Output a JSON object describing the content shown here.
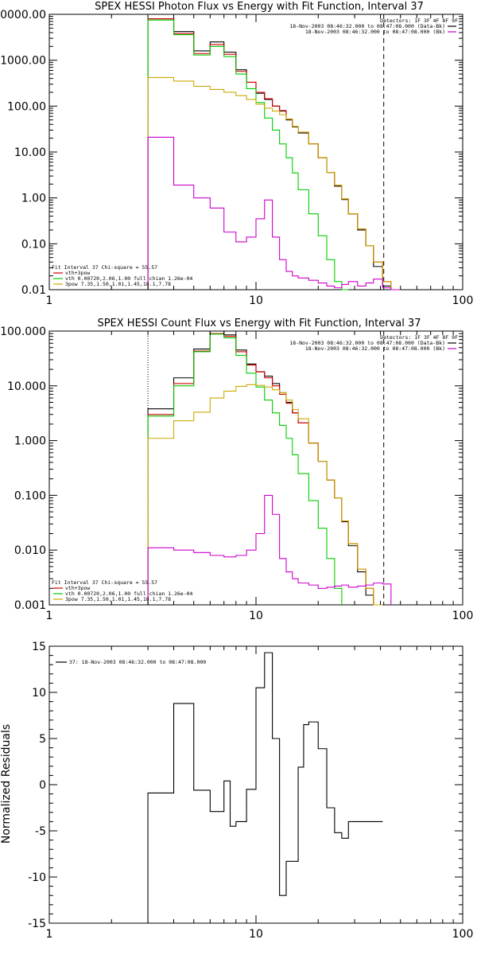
{
  "chart_data": [
    {
      "type": "line",
      "title": "SPEX HESSI Photon Flux vs Energy with Fit Function, Interval 37",
      "xscale": "log",
      "yscale": "log",
      "xlim": [
        1,
        100
      ],
      "ylim": [
        0.01,
        10000
      ],
      "xticks": [
        1,
        10,
        100
      ],
      "xtick_labels": [
        "1",
        "10",
        "100"
      ],
      "yticks": [
        0.01,
        0.1,
        1,
        10,
        100,
        1000,
        10000
      ],
      "ytick_labels": [
        "0.01",
        "0.10",
        "1.00",
        "10.00",
        "100.00",
        "1000.00",
        "10000.00"
      ],
      "vlines": [
        {
          "x": 3,
          "style": "dotted",
          "color": "#000000"
        },
        {
          "x": 41.5,
          "style": "dashed",
          "color": "#000000"
        }
      ],
      "legend_top": [
        "Detectors: 1F 3F 4F 8F 9F",
        "18-Nov-2003 08:46:32.000 to 08:47:08.000 (Data-Bk)",
        "18-Nov-2003 08:46:32.000 to 08:47:08.000 (Bk)"
      ],
      "legend_bottom": [
        "Fit Interval 37    Chi-square = 55.57",
        "vth+3pow",
        "vth 0.00720,2.06,1.00   full chian 1.26e-04",
        "3pow 7.35,1.50,1.01,1.45,18.1,7.78"
      ],
      "edges": [
        3.0,
        4.0,
        5.0,
        6.0,
        7.0,
        8.0,
        9.0,
        10.0,
        11.0,
        12.0,
        13.0,
        14.0,
        15.0,
        16.0,
        18.0,
        20.0,
        22.0,
        24.0,
        26.0,
        28.0,
        31.0,
        34.0,
        37.0,
        41.0,
        45.0,
        50.0
      ],
      "series": [
        {
          "name": "Data-Bk",
          "color": "#000000",
          "values": [
            8000,
            4200,
            1600,
            2500,
            1500,
            620,
            330,
            190,
            140,
            100,
            78,
            50,
            35,
            26,
            15,
            7.5,
            3.6,
            1.8,
            0.92,
            0.45,
            0.2,
            0.09,
            0.032,
            0.012,
            null
          ]
        },
        {
          "name": "vth+3pow",
          "color": "#d40000",
          "values": [
            8000,
            3800,
            1400,
            2200,
            1350,
            570,
            330,
            200,
            145,
            100,
            80,
            52,
            36,
            27,
            15,
            7.5,
            3.6,
            1.9,
            0.95,
            0.45,
            0.21,
            0.09,
            0.04,
            0.015,
            0.007
          ]
        },
        {
          "name": "vth",
          "color": "#00cc00",
          "values": [
            7500,
            3600,
            1300,
            2000,
            1200,
            500,
            240,
            120,
            55,
            30,
            15,
            7.5,
            3.5,
            1.5,
            0.45,
            0.15,
            0.045,
            0.015,
            0.005,
            null,
            null,
            null,
            null,
            null,
            null
          ]
        },
        {
          "name": "3pow",
          "color": "#ccaa00",
          "values": [
            420,
            350,
            270,
            230,
            200,
            170,
            140,
            110,
            90,
            78,
            65,
            52,
            36,
            27,
            15,
            7.5,
            3.6,
            1.9,
            0.95,
            0.45,
            0.21,
            0.09,
            0.04,
            0.015,
            0.007
          ]
        },
        {
          "name": "Bk",
          "color": "#cc00cc",
          "values": [
            21,
            1.9,
            1.0,
            0.6,
            0.18,
            0.11,
            0.14,
            0.35,
            0.9,
            0.14,
            0.045,
            0.025,
            0.02,
            0.018,
            0.016,
            0.014,
            0.012,
            0.011,
            0.013,
            0.015,
            0.012,
            0.014,
            0.017,
            0.011,
            0.008
          ]
        }
      ]
    },
    {
      "type": "line",
      "title": "SPEX HESSI Count Flux vs Energy with Fit Function, Interval 37",
      "xscale": "log",
      "yscale": "log",
      "xlim": [
        1,
        100
      ],
      "ylim": [
        0.001,
        100
      ],
      "xticks": [
        1,
        10,
        100
      ],
      "xtick_labels": [
        "1",
        "10",
        "100"
      ],
      "yticks": [
        0.001,
        0.01,
        0.1,
        1,
        10,
        100
      ],
      "ytick_labels": [
        "0.001",
        "0.010",
        "0.100",
        "1.000",
        "10.000",
        "100.000"
      ],
      "vlines": [
        {
          "x": 3,
          "style": "dotted",
          "color": "#000000"
        },
        {
          "x": 41.5,
          "style": "dashed",
          "color": "#000000"
        }
      ],
      "legend_top": [
        "Detectors: 1F 3F 4F 8F 9F",
        "18-Nov-2003 08:46:32.000 to 08:47:08.000 (Data-Bk)",
        "18-Nov-2003 08:46:32.000 to 08:47:08.000 (Bk)"
      ],
      "legend_bottom": [
        "Fit Interval 37    Chi-square = 55.57",
        "vth+3pow",
        "vth 0.00720,2.06,1.00   full chian 1.26e-04",
        "3pow 7.35,1.50,1.01,1.45,18.1,7.78"
      ],
      "edges": [
        3.0,
        4.0,
        5.0,
        6.0,
        7.0,
        8.0,
        9.0,
        10.0,
        11.0,
        12.0,
        13.0,
        14.0,
        15.0,
        16.0,
        18.0,
        20.0,
        22.0,
        24.0,
        26.0,
        28.0,
        31.0,
        34.0,
        37.0,
        41.0,
        45.0,
        50.0
      ],
      "series": [
        {
          "name": "Data-Bk",
          "color": "#000000",
          "values": [
            3.8,
            14,
            47,
            100,
            85,
            45,
            25,
            18,
            15,
            11,
            7.5,
            5.0,
            3.2,
            2.1,
            0.9,
            0.42,
            0.19,
            0.09,
            0.033,
            0.012,
            0.004,
            0.0015,
            null,
            null,
            null
          ]
        },
        {
          "name": "vth+3pow",
          "color": "#d40000",
          "values": [
            3.0,
            11,
            43,
            90,
            80,
            42,
            24,
            18,
            14,
            10,
            7.0,
            4.8,
            3.2,
            2.1,
            0.9,
            0.42,
            0.19,
            0.09,
            0.034,
            0.013,
            0.0045,
            0.002,
            null,
            null,
            null
          ]
        },
        {
          "name": "vth",
          "color": "#00cc00",
          "values": [
            2.8,
            10,
            42,
            88,
            75,
            36,
            17,
            9.5,
            5.5,
            3.2,
            1.9,
            1.1,
            0.55,
            0.25,
            0.08,
            0.025,
            0.007,
            0.002,
            null,
            null,
            null,
            null,
            null,
            null,
            null
          ]
        },
        {
          "name": "3pow",
          "color": "#ccaa00",
          "values": [
            1.1,
            2.3,
            3.3,
            6.0,
            8.0,
            9.8,
            10.5,
            10.2,
            9.5,
            8.5,
            7.5,
            5.5,
            3.7,
            2.5,
            0.9,
            0.42,
            0.19,
            0.09,
            0.034,
            0.013,
            0.0045,
            0.002,
            0.001,
            null,
            null
          ]
        },
        {
          "name": "Bk",
          "color": "#cc00cc",
          "values": [
            0.011,
            0.01,
            0.009,
            0.008,
            0.0075,
            0.008,
            0.01,
            0.02,
            0.1,
            0.045,
            0.007,
            0.004,
            0.003,
            0.0025,
            0.0023,
            0.002,
            0.0021,
            0.0022,
            0.0023,
            0.0021,
            0.0022,
            0.0023,
            0.0025,
            0.0024,
            null
          ]
        }
      ]
    },
    {
      "type": "line",
      "title": "",
      "ylabel": "Normalized Residuals",
      "xscale": "log",
      "yscale": "linear",
      "xlim": [
        1,
        100
      ],
      "ylim": [
        -15,
        15
      ],
      "xticks": [
        1,
        10,
        100
      ],
      "xtick_labels": [
        "1",
        "10",
        "100"
      ],
      "yticks": [
        -15,
        -10,
        -5,
        0,
        5,
        10,
        15
      ],
      "ytick_labels": [
        "-15",
        "-10",
        "-5",
        "0",
        "5",
        "10",
        "15"
      ],
      "legend": [
        "37: 18-Nov-2003 08:46:32.000 to 08:47:08.000"
      ],
      "edges": [
        3.0,
        4.0,
        5.0,
        6.0,
        7.0,
        7.5,
        8.0,
        9.0,
        10.0,
        11.0,
        12.0,
        13.0,
        14.0,
        16.0,
        17.0,
        18.0,
        20.0,
        22.0,
        24.0,
        26.0,
        28.0,
        31.0,
        34.0,
        37.0,
        41.0
      ],
      "series": [
        {
          "name": "37: 18-Nov-2003 08:46:32.000 to 08:47:08.000",
          "color": "#000000",
          "values": [
            -0.9,
            8.8,
            -0.6,
            -2.9,
            0.4,
            -4.5,
            -4.0,
            -0.5,
            10.5,
            14.3,
            5.0,
            -12.0,
            -8.3,
            1.9,
            6.5,
            6.8,
            3.9,
            -2.5,
            -5.2,
            -5.8,
            -4.0,
            -4.0,
            -4.0,
            -4.0
          ]
        }
      ]
    }
  ]
}
